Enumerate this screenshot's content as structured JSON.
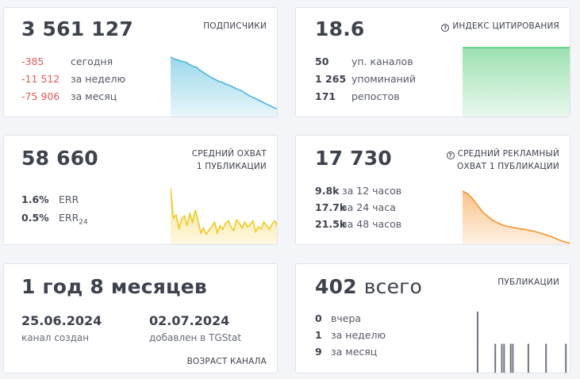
{
  "subscribers": {
    "value": "3 561 127",
    "label": "ПОДПИСЧИКИ",
    "rows": [
      {
        "value": "-385",
        "desc": "сегодня"
      },
      {
        "value": "-11 512",
        "desc": "за неделю"
      },
      {
        "value": "-75 906",
        "desc": "за месяц"
      }
    ],
    "color": "#4ab7da"
  },
  "citation": {
    "value": "18.6",
    "label": "ИНДЕКС ЦИТИРОВАНИЯ",
    "rows": [
      {
        "value": "50",
        "desc": "уп. каналов"
      },
      {
        "value": "1 265",
        "desc": "упоминаний"
      },
      {
        "value": "171",
        "desc": "репостов"
      }
    ],
    "color": "#4cc870"
  },
  "reach": {
    "value": "58 660",
    "label_line1": "СРЕДНИЙ ОХВАТ",
    "label_line2": "1 ПУБЛИКАЦИИ",
    "rows": [
      {
        "value": "1.6%",
        "desc": "ERR"
      },
      {
        "value": "0.5%",
        "desc": "ERR",
        "sub": "24"
      }
    ],
    "color": "#f2c81e"
  },
  "ad_reach": {
    "value": "17 730",
    "label_line1": "СРЕДНИЙ РЕКЛАМНЫЙ",
    "label_line2": "ОХВАТ 1 ПУБЛИКАЦИИ",
    "rows": [
      {
        "value": "9.8k",
        "desc": "за 12 часов"
      },
      {
        "value": "17.7k",
        "desc": "за 24 часа"
      },
      {
        "value": "21.5k",
        "desc": "за 48 часов"
      }
    ],
    "color": "#f5922a"
  },
  "age": {
    "value": "1 год 8 месяцев",
    "created_date": "25.06.2024",
    "created_desc": "канал создан",
    "added_date": "02.07.2024",
    "added_desc": "добавлен в TGStat",
    "label": "ВОЗРАСТ КАНАЛА"
  },
  "publications": {
    "value": "402",
    "unit": "всего",
    "label": "ПУБЛИКАЦИИ",
    "rows": [
      {
        "value": "0",
        "desc": "вчера"
      },
      {
        "value": "1",
        "desc": "за неделю"
      },
      {
        "value": "9",
        "desc": "за месяц"
      }
    ],
    "color": "#6e7682"
  },
  "chart_data": [
    {
      "type": "area",
      "name": "subscribers",
      "values": [
        100,
        97,
        95,
        93,
        92,
        88,
        85,
        83,
        78,
        74,
        70,
        66,
        63,
        60,
        58,
        55,
        53,
        50,
        47,
        45,
        41,
        37,
        34,
        31,
        28,
        25,
        22,
        19,
        16,
        14
      ]
    },
    {
      "type": "area",
      "name": "citation",
      "values": [
        100,
        100,
        100,
        100,
        100,
        100,
        100,
        100,
        100,
        100,
        100,
        100
      ]
    },
    {
      "type": "area",
      "name": "reach",
      "values": [
        95,
        45,
        50,
        28,
        42,
        48,
        32,
        52,
        38,
        58,
        40,
        20,
        28,
        18,
        25,
        30,
        38,
        20,
        32,
        26,
        36,
        40,
        30,
        24,
        42,
        36,
        28,
        38,
        30,
        34,
        40,
        22,
        30,
        27,
        38,
        32,
        26,
        35,
        40,
        30
      ]
    },
    {
      "type": "area",
      "name": "ad_reach",
      "values": [
        100,
        95,
        85,
        72,
        60,
        52,
        45,
        40,
        36,
        34,
        32,
        30,
        29,
        27,
        25,
        22,
        19,
        16,
        12,
        8,
        5,
        3
      ]
    },
    {
      "type": "bar",
      "name": "publications",
      "values": [
        0,
        0,
        0,
        0,
        0,
        100,
        0,
        0,
        0,
        0,
        0,
        0,
        0,
        48,
        0,
        0,
        48,
        48,
        0,
        0,
        48,
        48,
        0,
        0,
        0,
        0,
        0,
        0,
        48,
        0,
        0,
        0,
        0,
        0,
        0,
        0,
        48,
        0,
        0,
        0,
        0,
        0,
        0,
        0,
        0,
        48,
        0
      ]
    }
  ]
}
